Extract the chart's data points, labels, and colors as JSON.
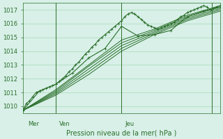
{
  "title": "",
  "xlabel": "Pression niveau de la mer( hPa )",
  "ylabel": "",
  "bg_color": "#d8f0e8",
  "grid_color": "#a8d8b8",
  "line_color": "#2a6e2a",
  "xlim": [
    0,
    120
  ],
  "ylim": [
    1009.5,
    1017.5
  ],
  "yticks": [
    1010,
    1011,
    1012,
    1013,
    1014,
    1015,
    1016,
    1017
  ],
  "day_lines": [
    20,
    60,
    115
  ],
  "day_labels": [
    "Mer",
    "Ven",
    "Jeu"
  ],
  "day_positions": [
    3,
    22,
    62
  ],
  "series": [
    [
      0,
      1009.7,
      2,
      1010.2,
      4,
      1010.4,
      6,
      1010.7,
      8,
      1011.0,
      10,
      1011.1,
      12,
      1011.2,
      14,
      1011.3,
      16,
      1011.4,
      18,
      1011.5,
      20,
      1011.6,
      22,
      1011.8,
      24,
      1012.0,
      26,
      1012.2,
      28,
      1012.5,
      30,
      1012.7,
      32,
      1013.0,
      34,
      1013.2,
      36,
      1013.5,
      38,
      1013.8,
      40,
      1014.0,
      42,
      1014.3,
      44,
      1014.5,
      46,
      1014.8,
      48,
      1015.0,
      50,
      1015.2,
      52,
      1015.4,
      54,
      1015.6,
      56,
      1015.8,
      58,
      1016.0,
      60,
      1016.2,
      62,
      1016.5,
      64,
      1016.7,
      66,
      1016.8,
      68,
      1016.7,
      70,
      1016.5,
      72,
      1016.3,
      74,
      1016.1,
      76,
      1015.9,
      78,
      1015.8,
      80,
      1015.7,
      82,
      1015.6,
      84,
      1015.7,
      86,
      1015.8,
      88,
      1015.9,
      90,
      1016.0,
      92,
      1016.1,
      94,
      1016.3,
      96,
      1016.5,
      98,
      1016.6,
      100,
      1016.8,
      102,
      1016.9,
      104,
      1017.0,
      106,
      1017.1,
      108,
      1017.2,
      110,
      1017.3,
      112,
      1017.2,
      114,
      1017.0,
      116,
      1017.1,
      118,
      1017.2,
      120,
      1017.3
    ],
    [
      0,
      1009.7,
      10,
      1011.1,
      20,
      1011.6,
      30,
      1012.4,
      40,
      1013.5,
      50,
      1014.2,
      60,
      1015.8,
      70,
      1015.1,
      80,
      1015.2,
      90,
      1015.5,
      100,
      1016.5,
      110,
      1016.9,
      120,
      1017.2
    ],
    [
      0,
      1009.7,
      20,
      1011.2,
      40,
      1013.0,
      60,
      1014.8,
      80,
      1015.6,
      100,
      1016.6,
      120,
      1017.3
    ],
    [
      0,
      1009.7,
      20,
      1011.1,
      40,
      1012.9,
      60,
      1014.6,
      80,
      1015.5,
      100,
      1016.5,
      120,
      1017.2
    ],
    [
      0,
      1009.7,
      20,
      1011.0,
      40,
      1012.7,
      60,
      1014.4,
      80,
      1015.4,
      100,
      1016.4,
      120,
      1017.1
    ],
    [
      0,
      1009.7,
      20,
      1010.9,
      40,
      1012.5,
      60,
      1014.2,
      80,
      1015.3,
      100,
      1016.3,
      120,
      1017.0
    ],
    [
      0,
      1009.7,
      20,
      1010.8,
      40,
      1012.3,
      60,
      1014.0,
      80,
      1015.2,
      100,
      1016.2,
      120,
      1016.9
    ]
  ],
  "marker_series_idx": 0,
  "marker_series_1_idx": 1
}
